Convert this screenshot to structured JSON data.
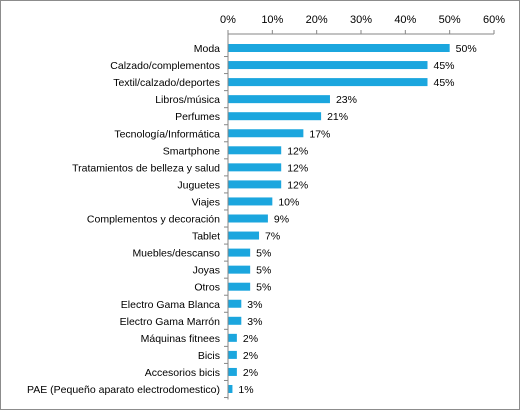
{
  "chart_data": {
    "type": "bar",
    "orientation": "horizontal",
    "categories": [
      "Moda",
      "Calzado/complementos",
      "Textil/calzado/deportes",
      "Libros/música",
      "Perfumes",
      "Tecnología/Informática",
      "Smartphone",
      "Tratamientos de belleza y salud",
      "Juguetes",
      "Viajes",
      "Complementos y decoración",
      "Tablet",
      "Muebles/descanso",
      "Joyas",
      "Otros",
      "Electro Gama Blanca",
      "Electro Gama Marrón",
      "Máquinas fitnees",
      "Bicis",
      "Accesorios bicis",
      "PAE (Pequeño aparato electrodomestico)"
    ],
    "values": [
      50,
      45,
      45,
      23,
      21,
      17,
      12,
      12,
      12,
      10,
      9,
      7,
      5,
      5,
      5,
      3,
      3,
      2,
      2,
      2,
      1
    ],
    "value_labels": [
      "50%",
      "45%",
      "45%",
      "23%",
      "21%",
      "17%",
      "12%",
      "12%",
      "12%",
      "10%",
      "9%",
      "7%",
      "5%",
      "5%",
      "5%",
      "3%",
      "3%",
      "2%",
      "2%",
      "2%",
      "1%"
    ],
    "xlim": [
      0,
      60
    ],
    "xticks": [
      0,
      10,
      20,
      30,
      40,
      50,
      60
    ],
    "xtick_labels": [
      "0%",
      "10%",
      "20%",
      "30%",
      "40%",
      "50%",
      "60%"
    ],
    "x_axis_position": "top",
    "grid": false,
    "legend": "none",
    "bar_color": "#1BA6DE",
    "title": "",
    "xlabel": "",
    "ylabel": ""
  }
}
